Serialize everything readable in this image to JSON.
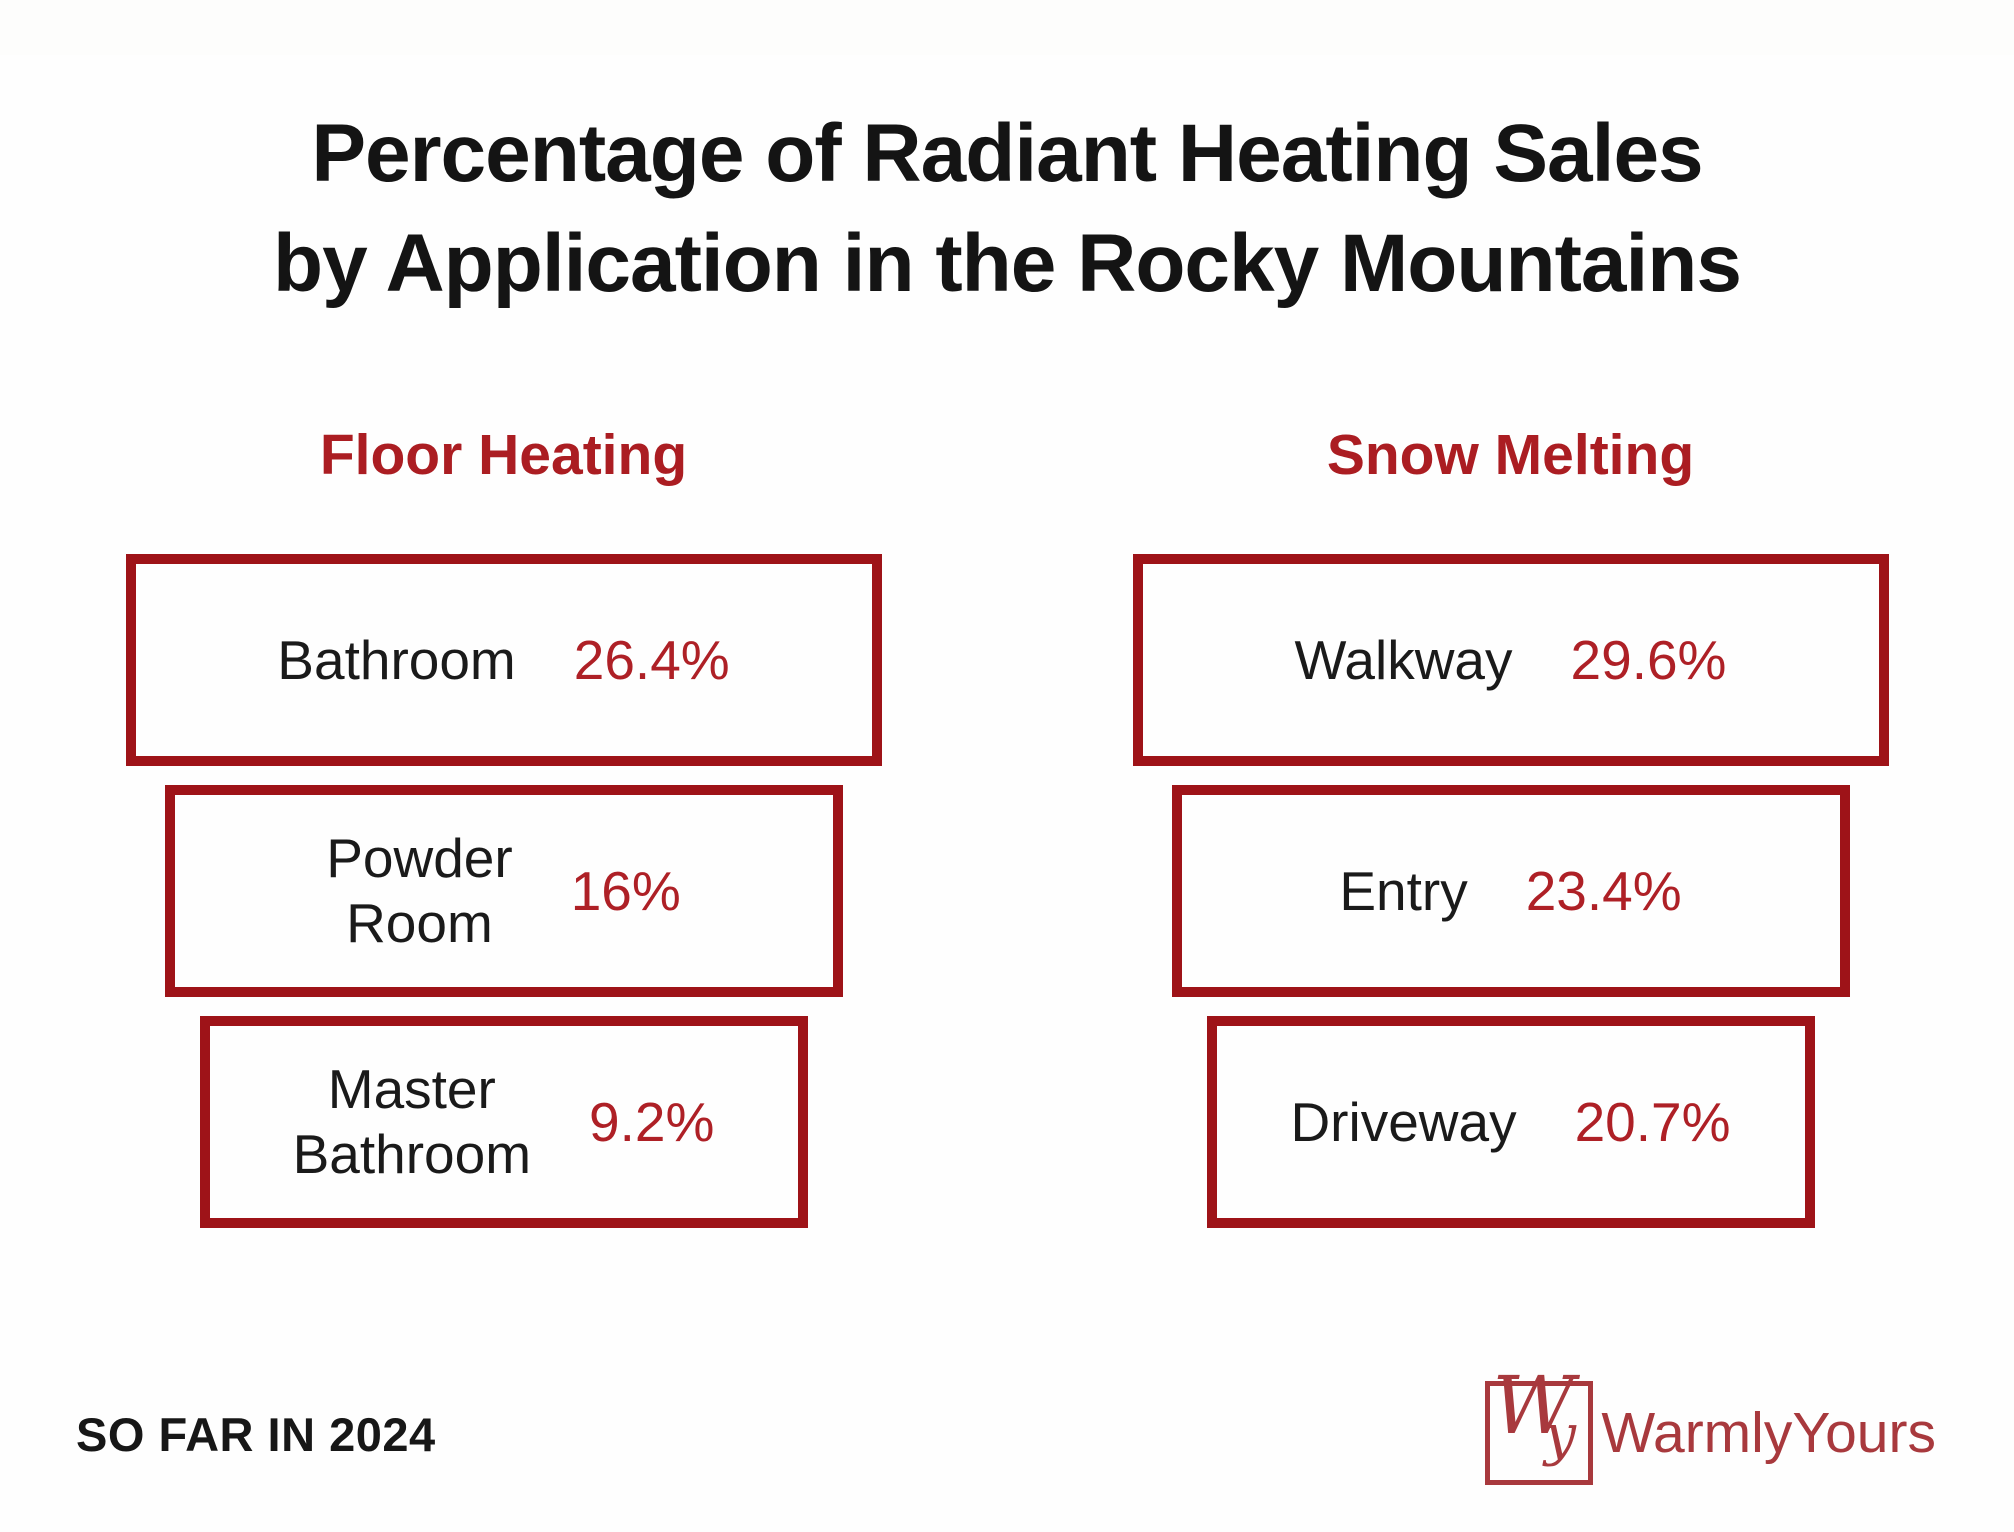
{
  "title": {
    "line1": "Percentage of Radiant Heating Sales",
    "line2": "by Application in the Rocky Mountains"
  },
  "columns": [
    {
      "header": "Floor Heating",
      "items": [
        {
          "lines": [
            "Bathroom"
          ],
          "value": "26.4%"
        },
        {
          "lines": [
            "Powder",
            "Room"
          ],
          "value": "16%"
        },
        {
          "lines": [
            "Master",
            "Bathroom"
          ],
          "value": "9.2%"
        }
      ]
    },
    {
      "header": "Snow Melting",
      "items": [
        {
          "lines": [
            "Walkway"
          ],
          "value": "29.6%"
        },
        {
          "lines": [
            "Entry"
          ],
          "value": "23.4%"
        },
        {
          "lines": [
            "Driveway"
          ],
          "value": "20.7%"
        }
      ]
    }
  ],
  "footer": {
    "note": "SO FAR IN 2024"
  },
  "logo": {
    "monogram_w": "W",
    "monogram_y": "y",
    "text": "WarmlyYours"
  },
  "colors": {
    "accent_border": "#9e1318",
    "accent_text": "#ae2026",
    "header_red": "#ab1d22",
    "logo_red": "#a8393d",
    "title_black": "#141414",
    "background": "#fefefe"
  },
  "chart_data": {
    "type": "table",
    "title": "Percentage of Radiant Heating Sales by Application in the Rocky Mountains",
    "note": "SO FAR IN 2024",
    "groups": [
      {
        "name": "Floor Heating",
        "categories": [
          "Bathroom",
          "Powder Room",
          "Master Bathroom"
        ],
        "values": [
          26.4,
          16,
          9.2
        ],
        "unit": "%"
      },
      {
        "name": "Snow Melting",
        "categories": [
          "Walkway",
          "Entry",
          "Driveway"
        ],
        "values": [
          29.6,
          23.4,
          20.7
        ],
        "unit": "%"
      }
    ],
    "layout_hints": {
      "style": "two-column funnel of outlined boxes, widths shrink with rank",
      "legend_position": "none",
      "grid": false
    }
  }
}
